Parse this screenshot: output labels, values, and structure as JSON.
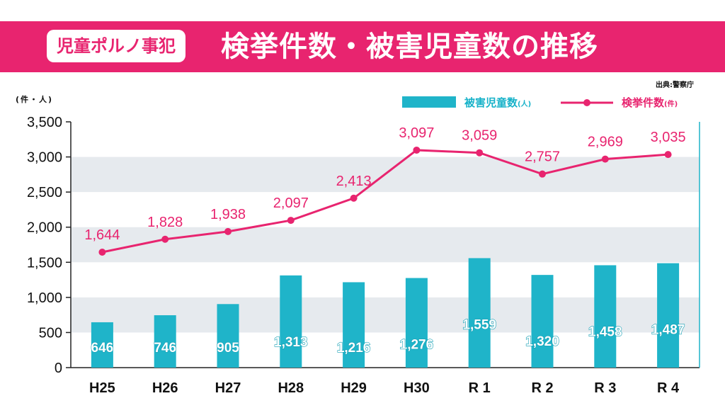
{
  "banner": {
    "tag": "児童ポルノ事犯",
    "title": "検挙件数・被害児童数の推移"
  },
  "source": "出典:警察庁",
  "units": "(件・人)",
  "legend": {
    "victims": "被害児童数",
    "victims_unit": "(人)",
    "cases": "検挙件数",
    "cases_unit": "(件)"
  },
  "colors": {
    "accent": "#e8246f",
    "bar": "#1fb4c9",
    "band": "#e6eaee"
  },
  "chart_data": {
    "type": "bar+line",
    "categories": [
      "H25",
      "H26",
      "H27",
      "H28",
      "H29",
      "H30",
      "R 1",
      "R 2",
      "R 3",
      "R 4"
    ],
    "series": [
      {
        "name": "被害児童数",
        "unit": "人",
        "type": "bar",
        "values": [
          646,
          746,
          905,
          1313,
          1216,
          1276,
          1559,
          1320,
          1458,
          1487
        ]
      },
      {
        "name": "検挙件数",
        "unit": "件",
        "type": "line",
        "values": [
          1644,
          1828,
          1938,
          2097,
          2413,
          3097,
          3059,
          2757,
          2969,
          3035
        ]
      }
    ],
    "yticks": [
      "0",
      "500",
      "1,000",
      "1,500",
      "2,000",
      "2,500",
      "3,000",
      "3,500"
    ],
    "ylim": [
      0,
      3500
    ],
    "grid": "alternating horizontal bands",
    "legend_position": "top-right"
  }
}
